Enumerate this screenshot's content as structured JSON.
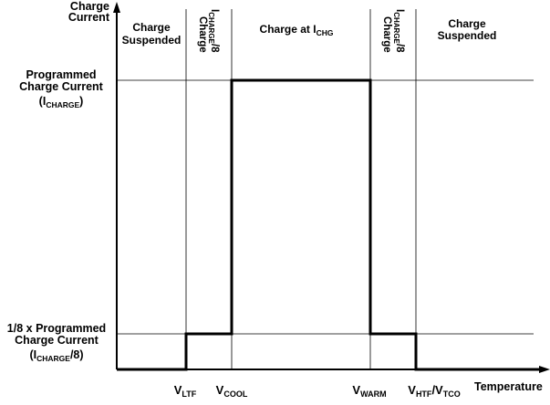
{
  "axes": {
    "y_title_line1": "Charge",
    "y_title_line2": "Current",
    "x_title": "Temperature"
  },
  "y_labels": {
    "programmed_line1": "Programmed",
    "programmed_line2": "Charge Current",
    "programmed_sym_open": "(I",
    "programmed_sym_sub": "CHARGE",
    "programmed_sym_close": ")",
    "eighth_line1": "1/8 x Programmed",
    "eighth_line2": "Charge Current",
    "eighth_sym_open": "(I",
    "eighth_sym_sub": "CHARGE",
    "eighth_sym_close": "/8)"
  },
  "x_labels": {
    "ltf_main": "V",
    "ltf_sub": "LTF",
    "cool_main": "V",
    "cool_sub": "COOL",
    "warm_main": "V",
    "warm_sub": "WARM",
    "htf_main": "V",
    "htf_sub": "HTF",
    "tco_sep": "/V",
    "tco_sub": "TCO"
  },
  "regions": {
    "left_suspended_line1": "Charge",
    "left_suspended_line2": "Suspended",
    "cool_eighth_main": "I",
    "cool_eighth_sub": "CHARGE",
    "cool_eighth_tail": "/8",
    "cool_eighth_line2": "Charge",
    "full_main": "Charge at I",
    "full_sub": "CHG",
    "warm_eighth_main": "I",
    "warm_eighth_sub": "CHARGE",
    "warm_eighth_tail": "/8",
    "warm_eighth_line2": "Charge",
    "right_suspended_line1": "Charge",
    "right_suspended_line2": "Suspended"
  },
  "profile": {
    "levels": [
      "0",
      "1/8 x Programmed Charge Current",
      "Programmed Charge Current"
    ],
    "segments": [
      {
        "from": "start",
        "to": "V_LTF",
        "level": "0"
      },
      {
        "from": "V_LTF",
        "to": "V_COOL",
        "level": "1/8 x Programmed Charge Current"
      },
      {
        "from": "V_COOL",
        "to": "V_WARM",
        "level": "Programmed Charge Current"
      },
      {
        "from": "V_WARM",
        "to": "V_HTF/V_TCO",
        "level": "1/8 x Programmed Charge Current"
      },
      {
        "from": "V_HTF/V_TCO",
        "to": "end",
        "level": "0"
      }
    ]
  }
}
